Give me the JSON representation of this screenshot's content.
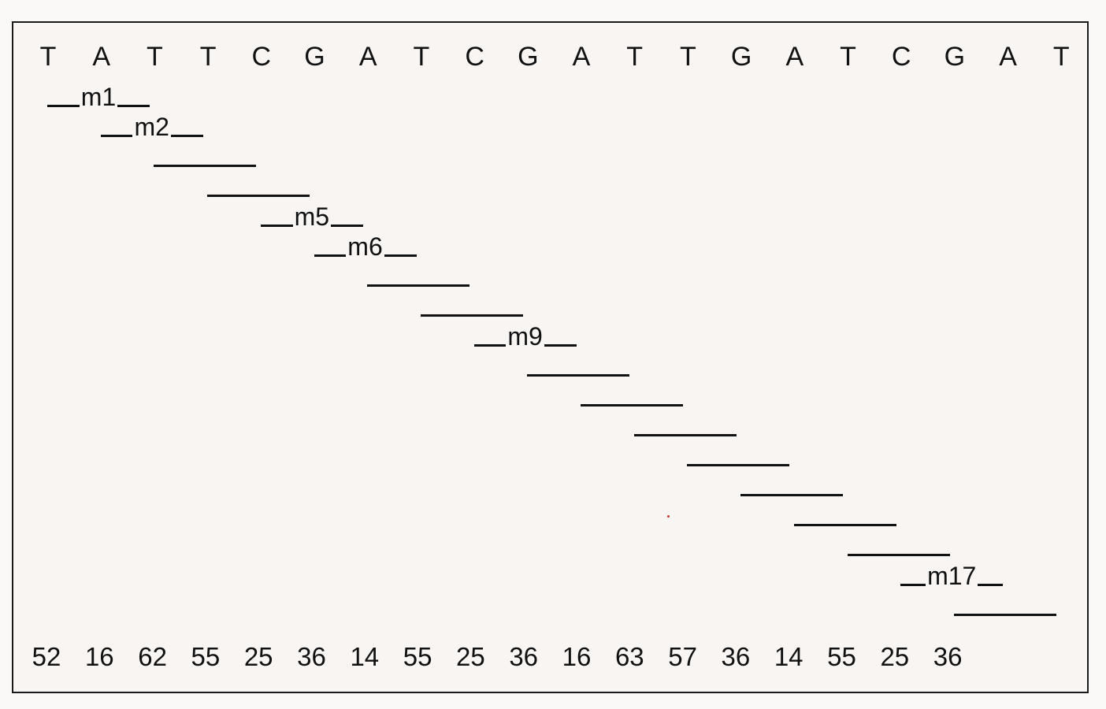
{
  "sequence": [
    "T",
    "A",
    "T",
    "T",
    "C",
    "G",
    "A",
    "T",
    "C",
    "G",
    "A",
    "T",
    "T",
    "G",
    "A",
    "T",
    "C",
    "G",
    "A",
    "T"
  ],
  "window_labels": [
    "m1",
    "m2",
    "",
    "",
    "m5",
    "m6",
    "",
    "",
    "m9",
    "",
    "",
    "",
    "",
    "",
    "",
    "",
    "m17",
    ""
  ],
  "values": [
    "52",
    "16",
    "62",
    "55",
    "25",
    "36",
    "14",
    "55",
    "25",
    "36",
    "16",
    "63",
    "57",
    "36",
    "14",
    "55",
    "25",
    "36"
  ]
}
